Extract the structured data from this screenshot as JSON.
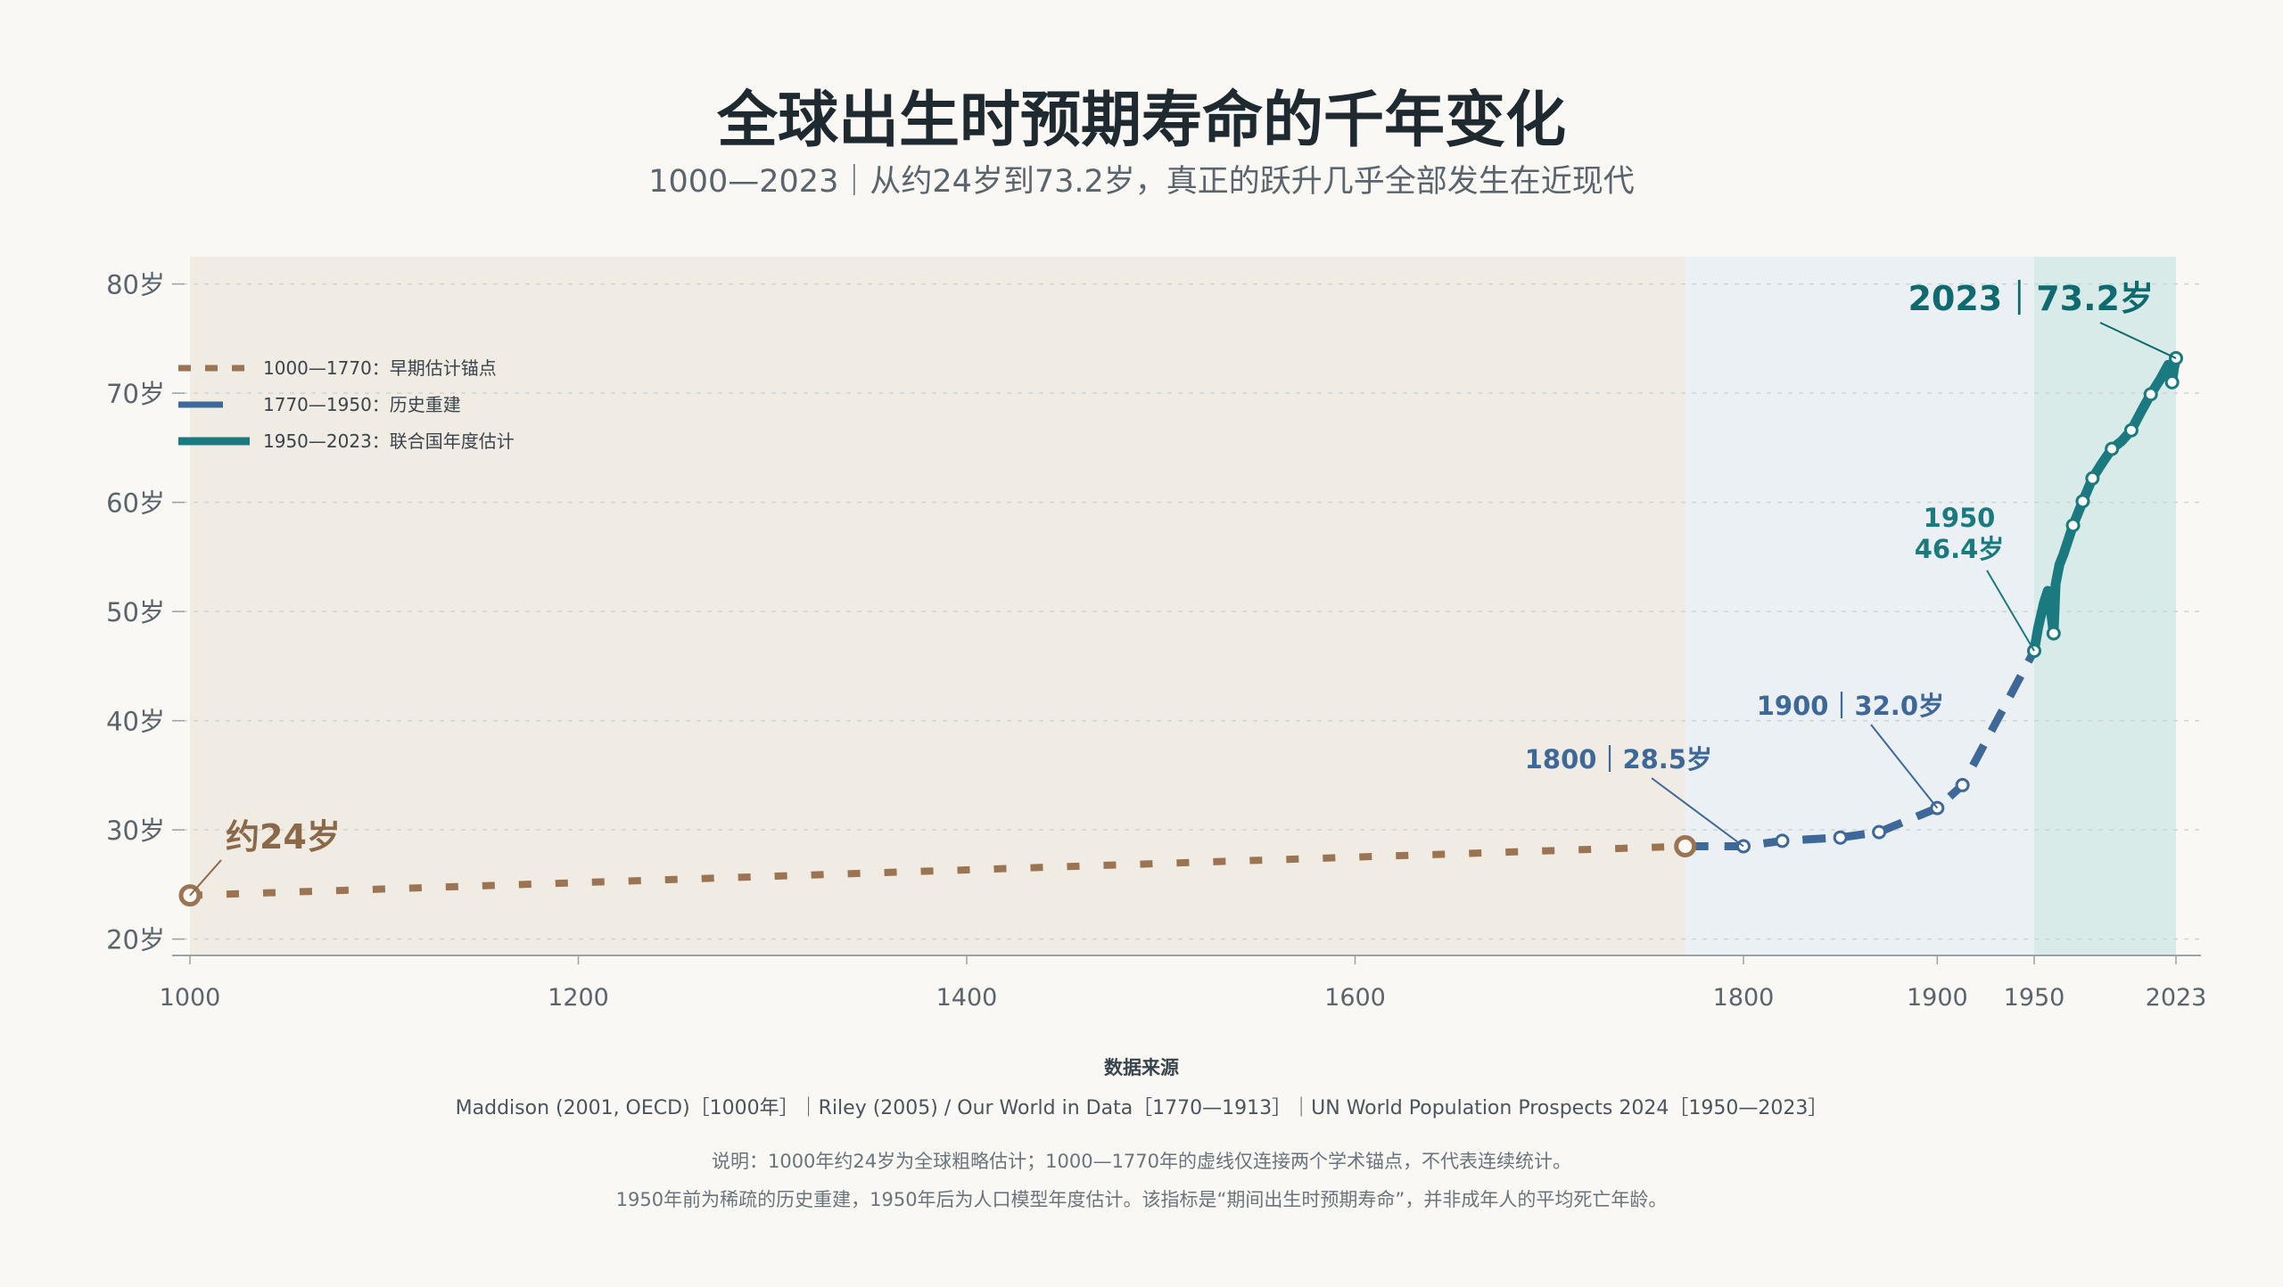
{
  "chart_data": {
    "type": "line",
    "title": "全球出生时预期寿命的千年变化",
    "subtitle": "1000—2023｜从约24岁到73.2岁，真正的跃升几乎全部发生在近现代",
    "x_ticks": [
      {
        "value": 1000,
        "label": "1000"
      },
      {
        "value": 1200,
        "label": "1200"
      },
      {
        "value": 1400,
        "label": "1400"
      },
      {
        "value": 1600,
        "label": "1600"
      },
      {
        "value": 1800,
        "label": "1800"
      },
      {
        "value": 1900,
        "label": "1900"
      },
      {
        "value": 1950,
        "label": "1950"
      },
      {
        "value": 2023,
        "label": "2023"
      }
    ],
    "y_ticks": [
      {
        "value": 20,
        "label": "20岁"
      },
      {
        "value": 30,
        "label": "30岁"
      },
      {
        "value": 40,
        "label": "40岁"
      },
      {
        "value": 50,
        "label": "50岁"
      },
      {
        "value": 60,
        "label": "60岁"
      },
      {
        "value": 70,
        "label": "70岁"
      },
      {
        "value": 80,
        "label": "80岁"
      }
    ],
    "ylim": [
      18.5,
      82.5
    ],
    "grid": "horizontal dashed",
    "legend_position": "top-left",
    "periods": [
      {
        "from": 1000,
        "to": 1770,
        "color": "#f0ebe3"
      },
      {
        "from": 1770,
        "to": 1950,
        "color": "#eaf0f4"
      },
      {
        "from": 1950,
        "to": 2023,
        "color": "#d9ebe8"
      }
    ],
    "series": [
      {
        "name": "1000—1770：早期估计锚点",
        "color": "#9a7453",
        "style": "dotted",
        "points": [
          [
            1000,
            24.0
          ],
          [
            1770,
            28.5
          ]
        ]
      },
      {
        "name": "1770—1950：历史重建",
        "color": "#3d6898",
        "style": "dashed",
        "points": [
          [
            1770,
            28.5
          ],
          [
            1800,
            28.5
          ],
          [
            1820,
            29.0
          ],
          [
            1850,
            29.3
          ],
          [
            1870,
            29.8
          ],
          [
            1900,
            32.0
          ],
          [
            1913,
            34.1
          ],
          [
            1950,
            46.4
          ]
        ]
      },
      {
        "name": "1950—2023：联合国年度估计",
        "color": "#1a7a80",
        "style": "solid",
        "points": [
          [
            1950,
            46.4
          ],
          [
            1952,
            48.5
          ],
          [
            1955,
            50.8
          ],
          [
            1957,
            51.9
          ],
          [
            1959,
            49.5
          ],
          [
            1960,
            48.0
          ],
          [
            1961,
            52.5
          ],
          [
            1963,
            54.3
          ],
          [
            1965,
            55.2
          ],
          [
            1970,
            57.9
          ],
          [
            1975,
            60.1
          ],
          [
            1980,
            62.2
          ],
          [
            1985,
            63.6
          ],
          [
            1990,
            64.9
          ],
          [
            1995,
            65.6
          ],
          [
            2000,
            66.6
          ],
          [
            2005,
            68.3
          ],
          [
            2010,
            69.9
          ],
          [
            2015,
            71.3
          ],
          [
            2019,
            72.6
          ],
          [
            2020,
            72.0
          ],
          [
            2021,
            71.0
          ],
          [
            2022,
            72.3
          ],
          [
            2023,
            73.2
          ]
        ]
      }
    ],
    "markers": [
      {
        "series": 0,
        "x": 1000,
        "y": 24.0,
        "style": "hollow-large"
      },
      {
        "series": 0,
        "x": 1770,
        "y": 28.5,
        "style": "hollow-large"
      },
      {
        "series": 1,
        "x": 1800,
        "y": 28.5
      },
      {
        "series": 1,
        "x": 1820,
        "y": 29.0
      },
      {
        "series": 1,
        "x": 1850,
        "y": 29.3
      },
      {
        "series": 1,
        "x": 1870,
        "y": 29.8
      },
      {
        "series": 1,
        "x": 1900,
        "y": 32.0
      },
      {
        "series": 1,
        "x": 1913,
        "y": 34.1
      },
      {
        "series": 2,
        "x": 1950,
        "y": 46.4
      },
      {
        "series": 2,
        "x": 1960,
        "y": 48.0
      },
      {
        "series": 2,
        "x": 1970,
        "y": 57.9
      },
      {
        "series": 2,
        "x": 1975,
        "y": 60.1
      },
      {
        "series": 2,
        "x": 1980,
        "y": 62.2
      },
      {
        "series": 2,
        "x": 1990,
        "y": 64.9
      },
      {
        "series": 2,
        "x": 2000,
        "y": 66.6
      },
      {
        "series": 2,
        "x": 2010,
        "y": 69.9
      },
      {
        "series": 2,
        "x": 2021,
        "y": 71.0
      },
      {
        "series": 2,
        "x": 2023,
        "y": 73.2
      }
    ],
    "annotations": [
      {
        "text": "约24岁",
        "x": 1000,
        "y": 24.0,
        "color": "#8a6848"
      },
      {
        "text": "1800｜28.5岁",
        "x": 1800,
        "y": 28.5,
        "color": "#3d6898"
      },
      {
        "text": "1900｜32.0岁",
        "x": 1900,
        "y": 32.0,
        "color": "#3d6898"
      },
      {
        "text": "1950",
        "text2": "46.4岁",
        "x": 1950,
        "y": 46.4,
        "color": "#1a7a80"
      },
      {
        "text": "2023｜73.2岁",
        "x": 2023,
        "y": 73.2,
        "color": "#0f6a70"
      }
    ],
    "source_title": "数据来源",
    "source_text": "Maddison (2001, OECD)［1000年］｜Riley (2005) / Our World in Data［1770—1913］｜UN World Population Prospects 2024［1950—2023］",
    "notes": [
      "说明：1000年约24岁为全球粗略估计；1000—1770年的虚线仅连接两个学术锚点，不代表连续统计。",
      "1950年前为稀疏的历史重建，1950年后为人口模型年度估计。该指标是“期间出生时预期寿命”，并非成年人的平均死亡年龄。"
    ]
  }
}
